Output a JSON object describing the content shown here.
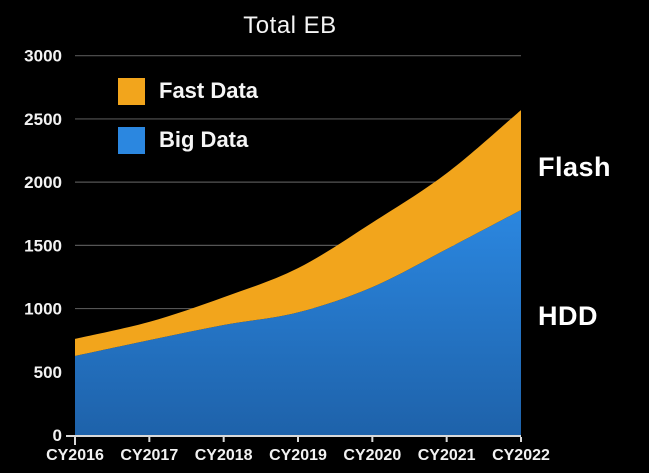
{
  "chart_data": {
    "type": "area",
    "stacked": true,
    "title": "Total EB",
    "categories": [
      "CY2016",
      "CY2017",
      "CY2018",
      "CY2019",
      "CY2020",
      "CY2021",
      "CY2022"
    ],
    "series": [
      {
        "name": "Big Data",
        "color": "#2B87E0",
        "color_bottom": "#1E62AA",
        "area_label": "HDD",
        "values": [
          625,
          750,
          870,
          970,
          1170,
          1470,
          1780
        ]
      },
      {
        "name": "Fast Data",
        "color": "#F2A51C",
        "area_label": "Flash",
        "values": [
          135,
          145,
          220,
          350,
          510,
          600,
          790
        ]
      }
    ],
    "stacked_totals": [
      760,
      895,
      1090,
      1320,
      1680,
      2070,
      2570
    ],
    "xlabel": "",
    "ylabel": "",
    "ylim": [
      0,
      3000
    ],
    "yticks": [
      0,
      500,
      1000,
      1500,
      2000,
      2500,
      3000
    ],
    "grid": "horizontal",
    "gridline_color": "#555555",
    "axis_line_color": "#d9d9d9",
    "tick_label_color": "#f2f2f2",
    "background": "#000000",
    "legend_position": "top-left",
    "legend_order": [
      "Fast Data",
      "Big Data"
    ]
  }
}
